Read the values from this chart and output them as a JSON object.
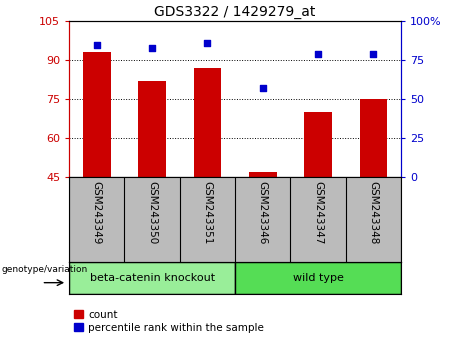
{
  "title": "GDS3322 / 1429279_at",
  "samples": [
    "GSM243349",
    "GSM243350",
    "GSM243351",
    "GSM243346",
    "GSM243347",
    "GSM243348"
  ],
  "counts": [
    93,
    82,
    87,
    47,
    70,
    75
  ],
  "percentiles": [
    85,
    83,
    86,
    57,
    79,
    79
  ],
  "ylim_left": [
    45,
    105
  ],
  "ylim_right": [
    0,
    100
  ],
  "yticks_left": [
    45,
    60,
    75,
    90,
    105
  ],
  "yticks_right": [
    0,
    25,
    50,
    75,
    100
  ],
  "bar_color": "#cc0000",
  "dot_color": "#0000cc",
  "bar_width": 0.5,
  "group1_label": "beta-catenin knockout",
  "group2_label": "wild type",
  "group1_color": "#99ee99",
  "group2_color": "#55dd55",
  "legend_count_label": "count",
  "legend_pct_label": "percentile rank within the sample",
  "genotype_label": "genotype/variation",
  "bg_color": "#bbbbbb",
  "plot_bg": "#ffffff",
  "left_tick_color": "#cc0000",
  "right_tick_color": "#0000cc"
}
